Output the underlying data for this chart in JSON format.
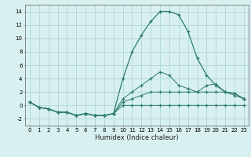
{
  "xlabel": "Humidex (Indice chaleur)",
  "x": [
    0,
    1,
    2,
    3,
    4,
    5,
    6,
    7,
    8,
    9,
    10,
    11,
    12,
    13,
    14,
    15,
    16,
    17,
    18,
    19,
    20,
    21,
    22,
    23
  ],
  "line_main": [
    0.5,
    -0.3,
    -0.5,
    -1.0,
    -1.0,
    -1.5,
    -1.2,
    -1.5,
    -1.5,
    -1.2,
    4.0,
    8.0,
    10.5,
    12.5,
    14.0,
    14.0,
    13.5,
    11.0,
    7.0,
    4.5,
    3.0,
    2.0,
    1.8,
    1.0
  ],
  "line2": [
    0.5,
    -0.3,
    -0.5,
    -1.0,
    -1.0,
    -1.5,
    -1.2,
    -1.5,
    -1.5,
    -1.2,
    1.0,
    2.0,
    3.0,
    4.0,
    5.0,
    4.5,
    3.0,
    2.5,
    2.0,
    3.0,
    3.2,
    2.0,
    1.8,
    1.0
  ],
  "line3": [
    0.5,
    -0.3,
    -0.5,
    -1.0,
    -1.0,
    -1.5,
    -1.2,
    -1.5,
    -1.5,
    -1.2,
    0.5,
    1.0,
    1.5,
    2.0,
    2.0,
    2.0,
    2.0,
    2.0,
    2.0,
    2.0,
    2.0,
    2.0,
    1.5,
    1.0
  ],
  "line4": [
    0.5,
    -0.3,
    -0.5,
    -1.0,
    -1.0,
    -1.5,
    -1.2,
    -1.5,
    -1.5,
    -1.2,
    0.0,
    0.0,
    0.0,
    0.0,
    0.0,
    0.0,
    0.0,
    0.0,
    0.0,
    0.0,
    0.0,
    0.0,
    0.0,
    0.0
  ],
  "color": "#2e7b6e",
  "bg_color": "#d8f0f0",
  "grid_color": "#aed8d8",
  "ylim": [
    -3,
    15
  ],
  "xlim": [
    -0.5,
    23.5
  ],
  "yticks": [
    -2,
    0,
    2,
    4,
    6,
    8,
    10,
    12,
    14
  ],
  "xticks": [
    0,
    1,
    2,
    3,
    4,
    5,
    6,
    7,
    8,
    9,
    10,
    11,
    12,
    13,
    14,
    15,
    16,
    17,
    18,
    19,
    20,
    21,
    22,
    23
  ]
}
